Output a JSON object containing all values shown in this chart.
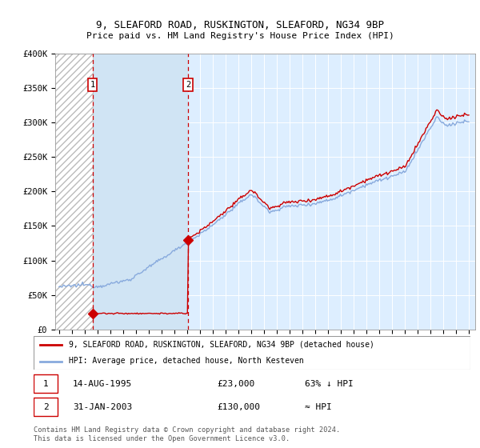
{
  "title1": "9, SLEAFORD ROAD, RUSKINGTON, SLEAFORD, NG34 9BP",
  "title2": "Price paid vs. HM Land Registry's House Price Index (HPI)",
  "legend_label1": "9, SLEAFORD ROAD, RUSKINGTON, SLEAFORD, NG34 9BP (detached house)",
  "legend_label2": "HPI: Average price, detached house, North Kesteven",
  "transaction1_date": 1995.62,
  "transaction1_price": 23000,
  "transaction2_date": 2003.08,
  "transaction2_price": 130000,
  "footnote": "Contains HM Land Registry data © Crown copyright and database right 2024.\nThis data is licensed under the Open Government Licence v3.0.",
  "ylim": [
    0,
    400000
  ],
  "xlim_start": 1993.0,
  "xlim_end": 2025.5,
  "property_color": "#cc0000",
  "hpi_color": "#88aadd",
  "box_color": "#cc0000",
  "hatch_color": "#bbbbbb",
  "bg_color": "#ddeeff",
  "bg_color2": "#ccddf0"
}
